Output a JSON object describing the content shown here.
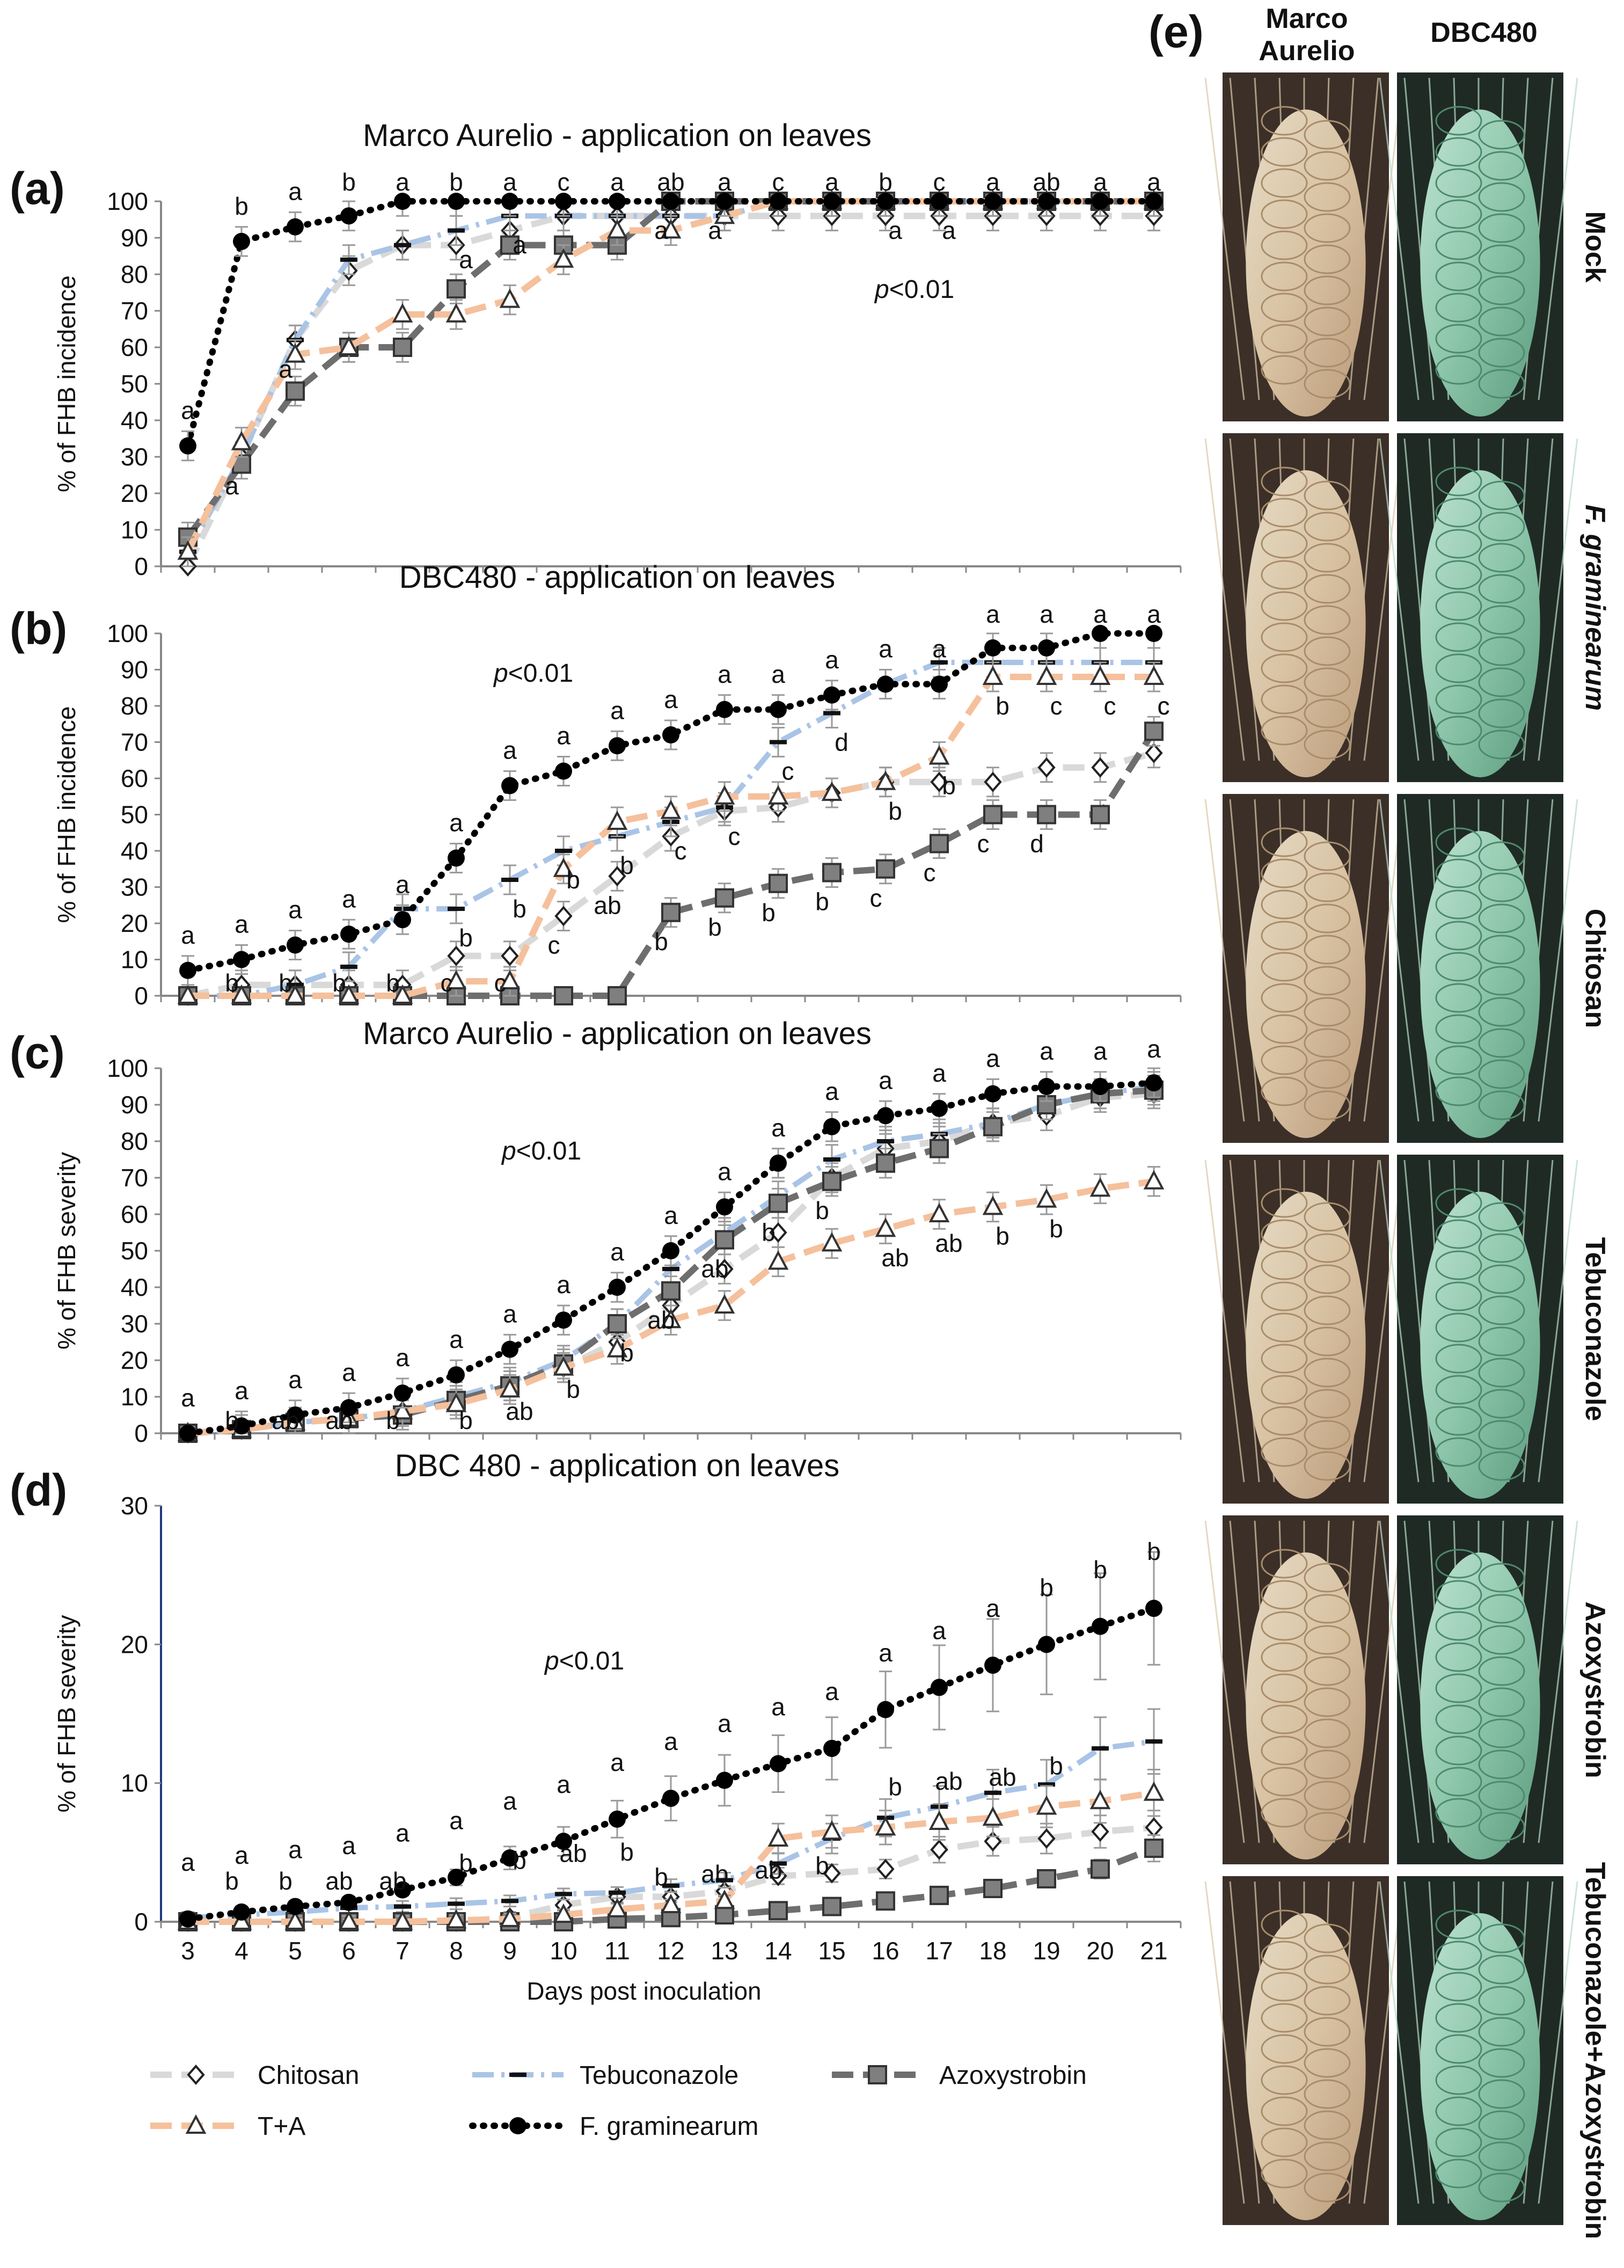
{
  "chart_data": [
    {
      "panel": "(a)",
      "type": "line",
      "title": "Marco Aurelio - application on leaves",
      "ylabel": "% of FHB incidence",
      "xlabel": "",
      "x": [
        3,
        4,
        5,
        6,
        7,
        8,
        9,
        10,
        11,
        12,
        13,
        14,
        15,
        16,
        17,
        18,
        19,
        20,
        21
      ],
      "ylim": [
        0,
        100
      ],
      "yticks": [
        0,
        10,
        20,
        30,
        40,
        50,
        60,
        70,
        80,
        90,
        100
      ],
      "pvalue_label": "p<0.01",
      "series": [
        {
          "name": "Chitosan",
          "values": [
            0,
            30,
            62,
            81,
            88,
            88,
            92,
            96,
            96,
            96,
            96,
            96,
            96,
            96,
            96,
            96,
            96,
            96,
            96
          ]
        },
        {
          "name": "Tebuconazole",
          "values": [
            4,
            30,
            62,
            84,
            88,
            92,
            96,
            96,
            96,
            96,
            96,
            100,
            100,
            100,
            100,
            100,
            100,
            100,
            100
          ]
        },
        {
          "name": "Azoxystrobin",
          "values": [
            8,
            28,
            48,
            60,
            60,
            76,
            88,
            88,
            88,
            100,
            100,
            100,
            100,
            100,
            100,
            100,
            100,
            100,
            100
          ]
        },
        {
          "name": "T+A",
          "values": [
            4,
            34,
            58,
            60,
            69,
            69,
            73,
            84,
            92,
            92,
            96,
            100,
            100,
            100,
            100,
            100,
            100,
            100,
            100
          ]
        },
        {
          "name": "F. graminearum",
          "values": [
            33,
            89,
            93,
            96,
            100,
            100,
            100,
            100,
            100,
            100,
            100,
            100,
            100,
            100,
            100,
            100,
            100,
            100,
            100
          ]
        }
      ],
      "annotations": [
        "a",
        "b",
        "a",
        "b",
        "a",
        "b",
        "a",
        "c",
        "a",
        "ab",
        "a",
        "c",
        "a",
        "b",
        "c",
        "a",
        "ab",
        "a",
        "a",
        "a",
        "a",
        "a",
        "a",
        "a",
        "a",
        "a",
        "a"
      ]
    },
    {
      "panel": "(b)",
      "type": "line",
      "title": "DBC480 - application on leaves",
      "ylabel": "% of FHB incidence",
      "xlabel": "",
      "x": [
        3,
        4,
        5,
        6,
        7,
        8,
        9,
        10,
        11,
        12,
        13,
        14,
        15,
        16,
        17,
        18,
        19,
        20,
        21
      ],
      "ylim": [
        0,
        100
      ],
      "yticks": [
        0,
        10,
        20,
        30,
        40,
        50,
        60,
        70,
        80,
        90,
        100
      ],
      "pvalue_label": "p<0.01",
      "series": [
        {
          "name": "Chitosan",
          "values": [
            0,
            3,
            3,
            3,
            3,
            11,
            11,
            22,
            33,
            44,
            51,
            52,
            56,
            59,
            59,
            59,
            63,
            63,
            67
          ]
        },
        {
          "name": "Tebuconazole",
          "values": [
            0,
            0,
            3,
            8,
            24,
            24,
            32,
            40,
            44,
            48,
            52,
            70,
            78,
            86,
            92,
            92,
            92,
            92,
            92
          ]
        },
        {
          "name": "Azoxystrobin",
          "values": [
            0,
            0,
            0,
            0,
            0,
            0,
            0,
            0,
            0,
            23,
            27,
            31,
            34,
            35,
            42,
            50,
            50,
            50,
            73
          ]
        },
        {
          "name": "T+A",
          "values": [
            0,
            0,
            0,
            0,
            0,
            4,
            4,
            35,
            48,
            51,
            55,
            55,
            56,
            59,
            66,
            88,
            88,
            88,
            88
          ]
        },
        {
          "name": "F. graminearum",
          "values": [
            7,
            10,
            14,
            17,
            21,
            38,
            58,
            62,
            69,
            72,
            79,
            79,
            83,
            86,
            86,
            96,
            96,
            100,
            100
          ]
        }
      ],
      "annotations": [
        "a",
        "a",
        "a",
        "a",
        "a",
        "a",
        "a",
        "a",
        "a",
        "a",
        "a",
        "a",
        "a",
        "a",
        "a",
        "a",
        "a",
        "a",
        "a",
        "b",
        "b",
        "b",
        "b",
        "b",
        "b",
        "b",
        "b",
        "b",
        "b",
        "b",
        "b",
        "b",
        "b",
        "b",
        "c",
        "c",
        "c",
        "c",
        "c",
        "c",
        "c",
        "c",
        "c",
        "c",
        "c",
        "c",
        "c",
        "ab",
        "d",
        "d"
      ]
    },
    {
      "panel": "(c)",
      "type": "line",
      "title": "Marco Aurelio - application on leaves",
      "ylabel": "% of FHB severity",
      "xlabel": "",
      "x": [
        3,
        4,
        5,
        6,
        7,
        8,
        9,
        10,
        11,
        12,
        13,
        14,
        15,
        16,
        17,
        18,
        19,
        20,
        21
      ],
      "ylim": [
        0,
        100
      ],
      "yticks": [
        0,
        10,
        20,
        30,
        40,
        50,
        60,
        70,
        80,
        90,
        100
      ],
      "pvalue_label": "p<0.01",
      "series": [
        {
          "name": "Chitosan",
          "values": [
            0,
            1,
            3,
            4,
            6,
            9,
            13,
            18,
            25,
            35,
            45,
            55,
            70,
            78,
            80,
            85,
            87,
            92,
            93
          ]
        },
        {
          "name": "Tebuconazole",
          "values": [
            0,
            1,
            3,
            4,
            6,
            10,
            14,
            20,
            30,
            45,
            55,
            65,
            75,
            80,
            82,
            85,
            90,
            93,
            95
          ]
        },
        {
          "name": "Azoxystrobin",
          "values": [
            0,
            1,
            3,
            4,
            5,
            9,
            13,
            19,
            30,
            39,
            53,
            63,
            69,
            74,
            78,
            84,
            90,
            93,
            94
          ]
        },
        {
          "name": "T+A",
          "values": [
            0,
            1,
            3,
            4,
            6,
            8,
            12,
            18,
            23,
            31,
            35,
            47,
            52,
            56,
            60,
            62,
            64,
            67,
            69
          ]
        },
        {
          "name": "F. graminearum",
          "values": [
            0,
            2,
            5,
            7,
            11,
            16,
            23,
            31,
            40,
            50,
            62,
            74,
            84,
            87,
            89,
            93,
            95,
            95,
            96
          ]
        }
      ],
      "annotations": [
        "a",
        "a",
        "a",
        "a",
        "a",
        "a",
        "a",
        "a",
        "a",
        "a",
        "a",
        "a",
        "a",
        "a",
        "a",
        "a",
        "a",
        "a",
        "a",
        "b",
        "b",
        "ab",
        "ab",
        "ab",
        "ab",
        "ab",
        "ab",
        "ab",
        "b",
        "b",
        "b",
        "b",
        "b",
        "b",
        "b"
      ]
    },
    {
      "panel": "(d)",
      "type": "line",
      "title": "DBC 480 - application on leaves",
      "ylabel": "% of FHB severity",
      "xlabel": "Days post inoculation",
      "x": [
        3,
        4,
        5,
        6,
        7,
        8,
        9,
        10,
        11,
        12,
        13,
        14,
        15,
        16,
        17,
        18,
        19,
        20,
        21
      ],
      "ylim": [
        0,
        30
      ],
      "yticks": [
        0,
        10,
        20,
        30
      ],
      "pvalue_label": "p<0.01",
      "series": [
        {
          "name": "Chitosan",
          "values": [
            0,
            0,
            0,
            0,
            0,
            0,
            0.3,
            1.2,
            1.8,
            1.8,
            2.2,
            3.3,
            3.5,
            3.8,
            5.2,
            5.8,
            6.0,
            6.5,
            6.8
          ]
        },
        {
          "name": "Tebuconazole",
          "values": [
            0.3,
            0.5,
            0.7,
            1.0,
            1.1,
            1.3,
            1.5,
            2.0,
            2.1,
            2.6,
            3.0,
            4.2,
            6.0,
            7.5,
            8.3,
            9.3,
            9.9,
            12.5,
            13.0
          ]
        },
        {
          "name": "Azoxystrobin",
          "values": [
            0,
            0,
            0,
            0,
            0,
            0,
            0,
            0,
            0.2,
            0.3,
            0.5,
            0.8,
            1.1,
            1.5,
            1.9,
            2.4,
            3.1,
            3.8,
            5.3
          ]
        },
        {
          "name": "T+A",
          "values": [
            0,
            0,
            0,
            0,
            0,
            0.1,
            0.2,
            0.5,
            0.9,
            1.2,
            1.5,
            6.0,
            6.5,
            6.8,
            7.2,
            7.5,
            8.3,
            8.7,
            9.3
          ]
        },
        {
          "name": "F. graminearum",
          "values": [
            0.2,
            0.7,
            1.1,
            1.4,
            2.3,
            3.2,
            4.6,
            5.8,
            7.4,
            8.9,
            10.2,
            11.4,
            12.5,
            15.3,
            16.9,
            18.5,
            20.0,
            21.3,
            22.6
          ]
        }
      ],
      "annotations": [
        "a",
        "a",
        "a",
        "a",
        "a",
        "a",
        "a",
        "a",
        "a",
        "a",
        "a",
        "a",
        "a",
        "a",
        "a",
        "a",
        "b",
        "b",
        "b",
        "b",
        "b",
        "b",
        "b",
        "b",
        "b",
        "ab",
        "ab",
        "ab",
        "ab",
        "ab",
        "ab",
        "ab",
        "b",
        "b",
        "b"
      ]
    }
  ],
  "legend": [
    {
      "name": "Chitosan",
      "color": "#d9d9d9",
      "marker": "diamond-open",
      "dash": "long"
    },
    {
      "name": "Tebuconazole",
      "color": "#a9c4e6",
      "marker": "dash-black",
      "dash": "dashdot"
    },
    {
      "name": "Azoxystrobin",
      "color": "#6e6e6e",
      "marker": "square-grey",
      "dash": "long"
    },
    {
      "name": "T+A",
      "color": "#f5c09c",
      "marker": "triangle-open",
      "dash": "long"
    },
    {
      "name": "F. graminearum",
      "color": "#000000",
      "marker": "circle-black",
      "dash": "dotted"
    }
  ],
  "photo_panel": {
    "label": "(e)",
    "columns": [
      "Marco\nAurelio",
      "DBC480"
    ],
    "rows": [
      "Mock",
      "F. graminearum",
      "Chitosan",
      "Tebuconazole",
      "Azoxystrobin",
      "Tebuconazole+Azoxystrobin"
    ]
  }
}
